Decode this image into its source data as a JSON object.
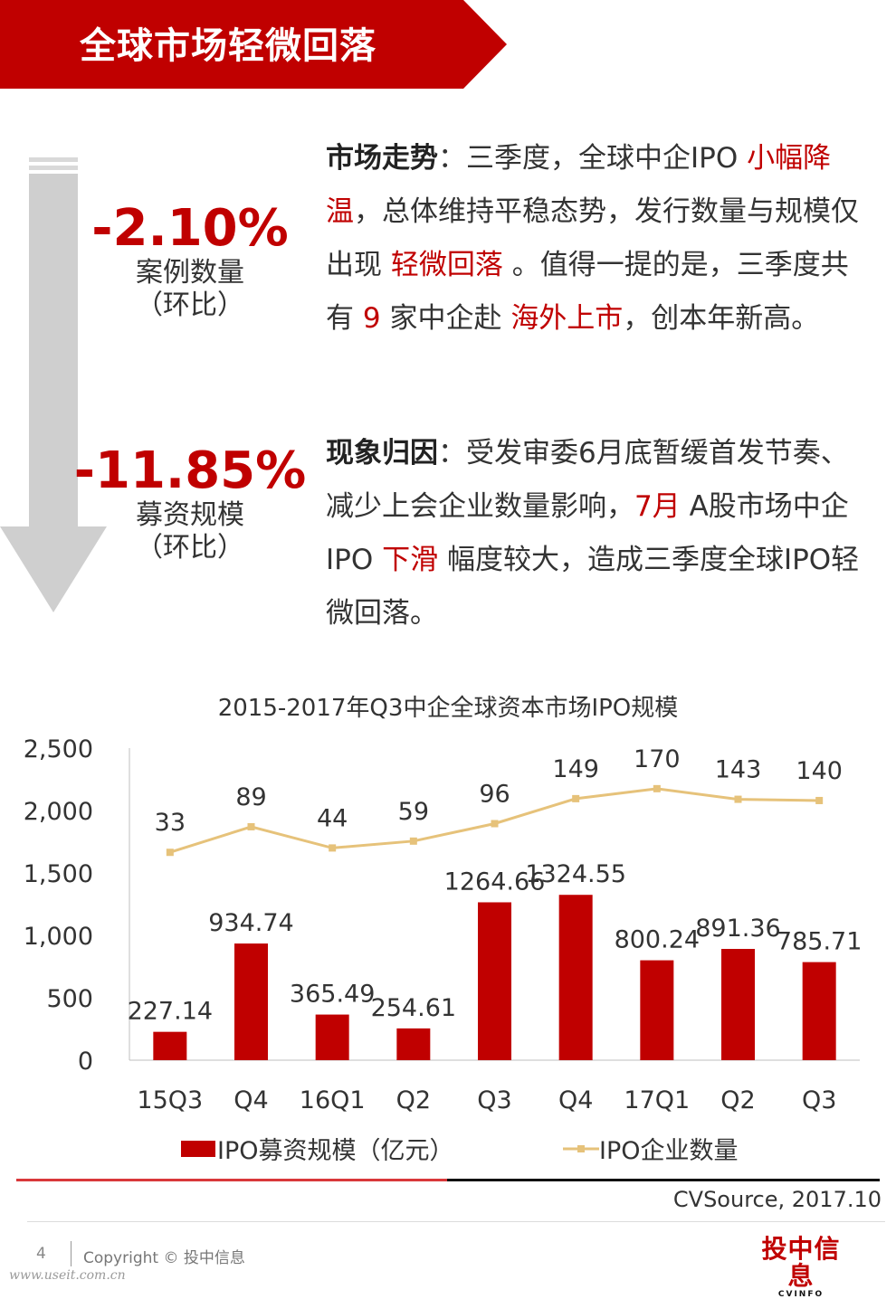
{
  "header": {
    "title": "全球市场轻微回落"
  },
  "colors": {
    "accent": "#c00000",
    "line": "#e6c27a",
    "arrow": "#cfcfcf"
  },
  "stats": [
    {
      "value": "-2.10%",
      "label": "案例数量",
      "paren": "（环比）"
    },
    {
      "value": "-11.85%",
      "label": "募资规模",
      "paren": "（环比）"
    }
  ],
  "paragraphs": [
    {
      "lead": "市场走势",
      "segments": [
        {
          "text": "：三季度，全球中企IPO ",
          "hl": false
        },
        {
          "text": "小幅降温",
          "hl": true
        },
        {
          "text": "，总体维持平稳态势，发行数量与规模仅出现 ",
          "hl": false
        },
        {
          "text": "轻微回落",
          "hl": true
        },
        {
          "text": " 。值得一提的是，三季度共有 ",
          "hl": false
        },
        {
          "text": "9",
          "hl": true
        },
        {
          "text": " 家中企赴 ",
          "hl": false
        },
        {
          "text": "海外上市",
          "hl": true
        },
        {
          "text": "，创本年新高。",
          "hl": false
        }
      ]
    },
    {
      "lead": "现象归因",
      "segments": [
        {
          "text": "：受发审委6月底暂缓首发节奏、减少上会企业数量影响，",
          "hl": false
        },
        {
          "text": "7月",
          "hl": true
        },
        {
          "text": " A股市场中企IPO ",
          "hl": false
        },
        {
          "text": "下滑",
          "hl": true
        },
        {
          "text": " 幅度较大，造成三季度全球IPO轻微回落。",
          "hl": false
        }
      ]
    }
  ],
  "chart_data": {
    "type": "bar",
    "title": "2015-2017年Q3中企全球资本市场IPO规模",
    "categories": [
      "15Q3",
      "Q4",
      "16Q1",
      "Q2",
      "Q3",
      "Q4",
      "17Q1",
      "Q2",
      "Q3"
    ],
    "ylim": [
      0,
      2500
    ],
    "yticks": [
      "0",
      "500",
      "1,000",
      "1,500",
      "2,000",
      "2,500"
    ],
    "ytick_values": [
      0,
      500,
      1000,
      1500,
      2000,
      2500
    ],
    "series": [
      {
        "name": "IPO募资规模（亿元）",
        "type": "bar",
        "color": "#c00000",
        "values": [
          227.14,
          934.74,
          365.49,
          254.61,
          1264.66,
          1324.55,
          800.24,
          891.36,
          785.71
        ],
        "labels": [
          "227.14",
          "934.74",
          "365.49",
          "254.61",
          "1264.66",
          "1324.55",
          "800.24",
          "891.36",
          "785.71"
        ]
      },
      {
        "name": "IPO企业数量",
        "type": "line",
        "color": "#e6c27a",
        "values": [
          33,
          89,
          44,
          59,
          96,
          149,
          170,
          143,
          140
        ],
        "plot_values": [
          1665,
          1870,
          1700,
          1755,
          1895,
          2095,
          2175,
          2090,
          2080
        ],
        "labels": [
          "33",
          "89",
          "44",
          "59",
          "96",
          "149",
          "170",
          "143",
          "140"
        ]
      }
    ]
  },
  "source": "CVSource, 2017.10",
  "footer": {
    "page": "4",
    "copyright": "Copyright © 投中信息",
    "logo_cn": "投中信息",
    "logo_en": "CVINFO",
    "watermark": "www.useit.com.cn"
  }
}
